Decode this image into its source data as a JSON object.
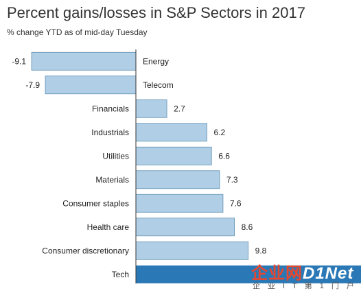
{
  "title": "Percent gains/losses in S&P Sectors in 2017",
  "subtitle": "% change YTD as of mid-day Tuesday",
  "colors": {
    "bar": "#b0cfe6",
    "bar_highlight": "#2a78b5",
    "bar_stroke": "#5e8fb3"
  },
  "chart_data": {
    "type": "bar",
    "orientation": "horizontal",
    "categories": [
      "Energy",
      "Telecom",
      "Financials",
      "Industrials",
      "Utilities",
      "Materials",
      "Consumer staples",
      "Health care",
      "Consumer discretionary",
      "Tech"
    ],
    "values": [
      -9.1,
      -7.9,
      2.7,
      6.2,
      6.6,
      7.3,
      7.6,
      8.6,
      9.8,
      null
    ],
    "value_labels": [
      "-9.1",
      "-7.9",
      "2.7",
      "6.2",
      "6.6",
      "7.3",
      "7.6",
      "8.6",
      "9.8",
      ""
    ],
    "highlight": "Tech",
    "title": "Percent gains/losses in S&P Sectors in 2017",
    "subtitle": "% change YTD as of mid-day Tuesday"
  },
  "watermark": {
    "logo_left": "企业网",
    "logo_right": "D1Net",
    "tagline": "企业IT第1门户"
  }
}
